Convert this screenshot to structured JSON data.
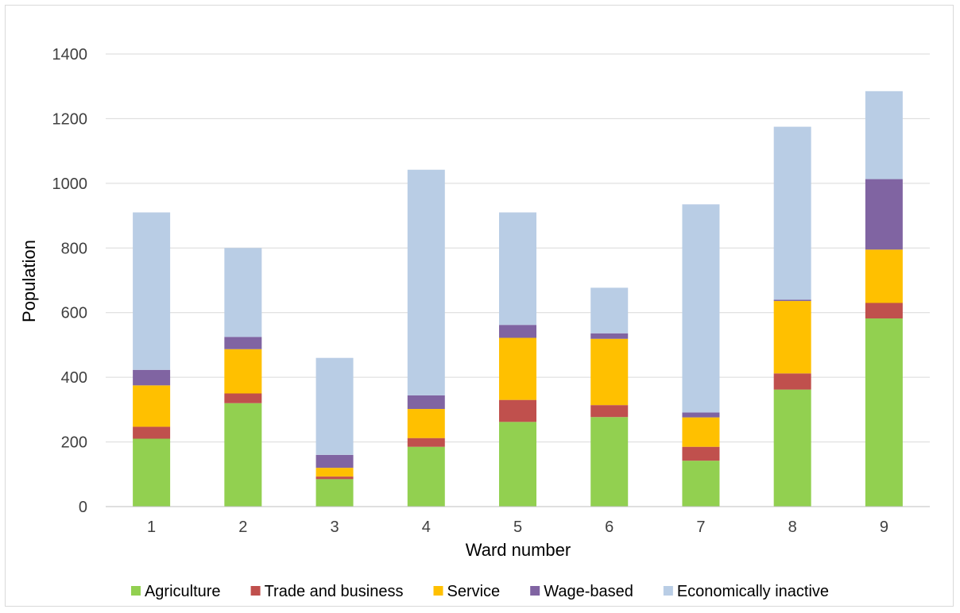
{
  "chart_data": {
    "type": "bar",
    "stacked": true,
    "categories": [
      "1",
      "2",
      "3",
      "4",
      "5",
      "6",
      "7",
      "8",
      "9"
    ],
    "series": [
      {
        "name": "Agriculture",
        "color": "#92d050",
        "values": [
          210,
          320,
          85,
          185,
          262,
          277,
          142,
          362,
          582
        ]
      },
      {
        "name": "Trade and business",
        "color": "#c0504d",
        "values": [
          37,
          30,
          8,
          27,
          68,
          37,
          43,
          50,
          48
        ]
      },
      {
        "name": "Service",
        "color": "#ffc000",
        "values": [
          128,
          137,
          27,
          90,
          192,
          205,
          91,
          224,
          165
        ]
      },
      {
        "name": "Wage-based",
        "color": "#8064a2",
        "values": [
          48,
          38,
          40,
          42,
          40,
          17,
          15,
          4,
          218
        ]
      },
      {
        "name": "Economically inactive",
        "color": "#b9cde5",
        "values": [
          487,
          275,
          300,
          698,
          348,
          141,
          644,
          535,
          272
        ]
      }
    ],
    "xlabel": "Ward number",
    "ylabel": "Population",
    "ylim": [
      0,
      1400
    ],
    "yticks": [
      "0",
      "200",
      "400",
      "600",
      "800",
      "1000",
      "1200",
      "1400"
    ],
    "grid": true,
    "legend_position": "bottom"
  }
}
